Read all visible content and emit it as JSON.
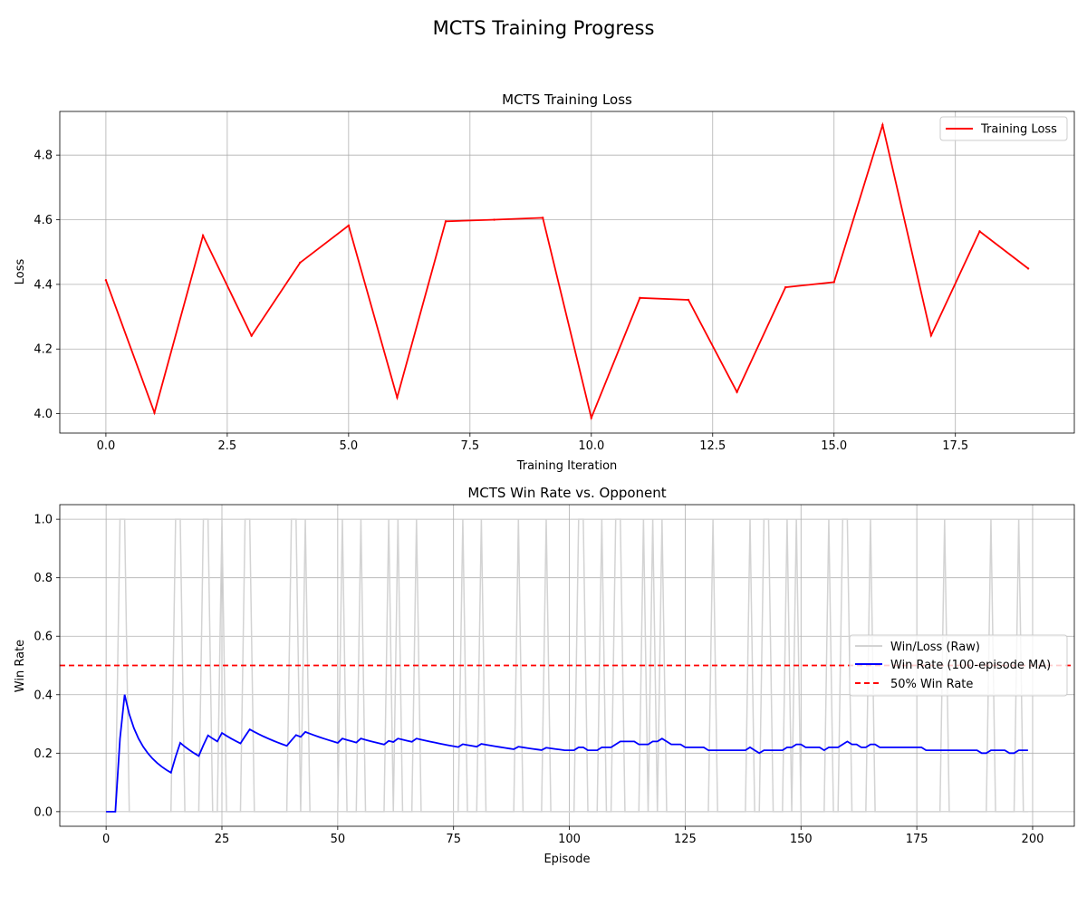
{
  "figure": {
    "suptitle": "MCTS Training Progress"
  },
  "chart_data": [
    {
      "type": "line",
      "title": "MCTS Training Loss",
      "xlabel": "Training Iteration",
      "ylabel": "Loss",
      "xlim": [
        -0.95,
        19.95
      ],
      "ylim": [
        3.94,
        4.935
      ],
      "xticks": [
        0,
        2.5,
        5,
        7.5,
        10,
        12.5,
        15,
        17.5
      ],
      "xtick_labels": [
        "0.0",
        "2.5",
        "5.0",
        "7.5",
        "10.0",
        "12.5",
        "15.0",
        "17.5"
      ],
      "yticks": [
        4.0,
        4.2,
        4.4,
        4.6,
        4.8
      ],
      "ytick_labels": [
        "4.0",
        "4.2",
        "4.4",
        "4.6",
        "4.8"
      ],
      "grid": true,
      "legend_position": "upper right",
      "series": [
        {
          "name": "Training Loss",
          "color": "#ff0000",
          "style": "solid",
          "x": [
            0,
            1,
            2,
            3,
            4,
            5,
            6,
            7,
            8,
            9,
            10,
            11,
            12,
            13,
            14,
            15,
            16,
            17,
            18,
            19
          ],
          "y": [
            4.413,
            4.003,
            4.551,
            4.241,
            4.467,
            4.582,
            4.05,
            4.595,
            4.6,
            4.606,
            3.987,
            4.358,
            4.352,
            4.067,
            4.391,
            4.407,
            4.893,
            4.242,
            4.564,
            4.449
          ]
        }
      ]
    },
    {
      "type": "line",
      "title": "MCTS Win Rate vs. Opponent",
      "xlabel": "Episode",
      "ylabel": "Win Rate",
      "xlim": [
        -10,
        209
      ],
      "ylim": [
        -0.05,
        1.05
      ],
      "xticks": [
        0,
        25,
        50,
        75,
        100,
        125,
        150,
        175,
        200
      ],
      "xtick_labels": [
        "0",
        "25",
        "50",
        "75",
        "100",
        "125",
        "150",
        "175",
        "200"
      ],
      "yticks": [
        0.0,
        0.2,
        0.4,
        0.6,
        0.8,
        1.0
      ],
      "ytick_labels": [
        "0.0",
        "0.2",
        "0.4",
        "0.6",
        "0.8",
        "1.0"
      ],
      "grid": true,
      "legend_position": "center right",
      "series": [
        {
          "name": "Win/Loss (Raw)",
          "color": "#d3d3d3",
          "style": "solid",
          "wins": [
            3,
            4,
            15,
            16,
            21,
            22,
            25,
            30,
            31,
            40,
            41,
            43,
            51,
            55,
            61,
            63,
            67,
            77,
            81,
            89,
            95,
            102,
            103,
            107,
            110,
            111,
            116,
            118,
            120,
            131,
            139,
            142,
            143,
            147,
            149,
            156,
            159,
            160,
            165,
            181,
            191,
            197
          ],
          "episodes": 200
        },
        {
          "name": "Win Rate (100-episode MA)",
          "color": "#0000ff",
          "style": "solid",
          "computed_from": "Win/Loss (Raw)",
          "window": 100
        },
        {
          "name": "50% Win Rate",
          "color": "#ff0000",
          "style": "dashed",
          "hline": 0.5
        }
      ]
    }
  ]
}
